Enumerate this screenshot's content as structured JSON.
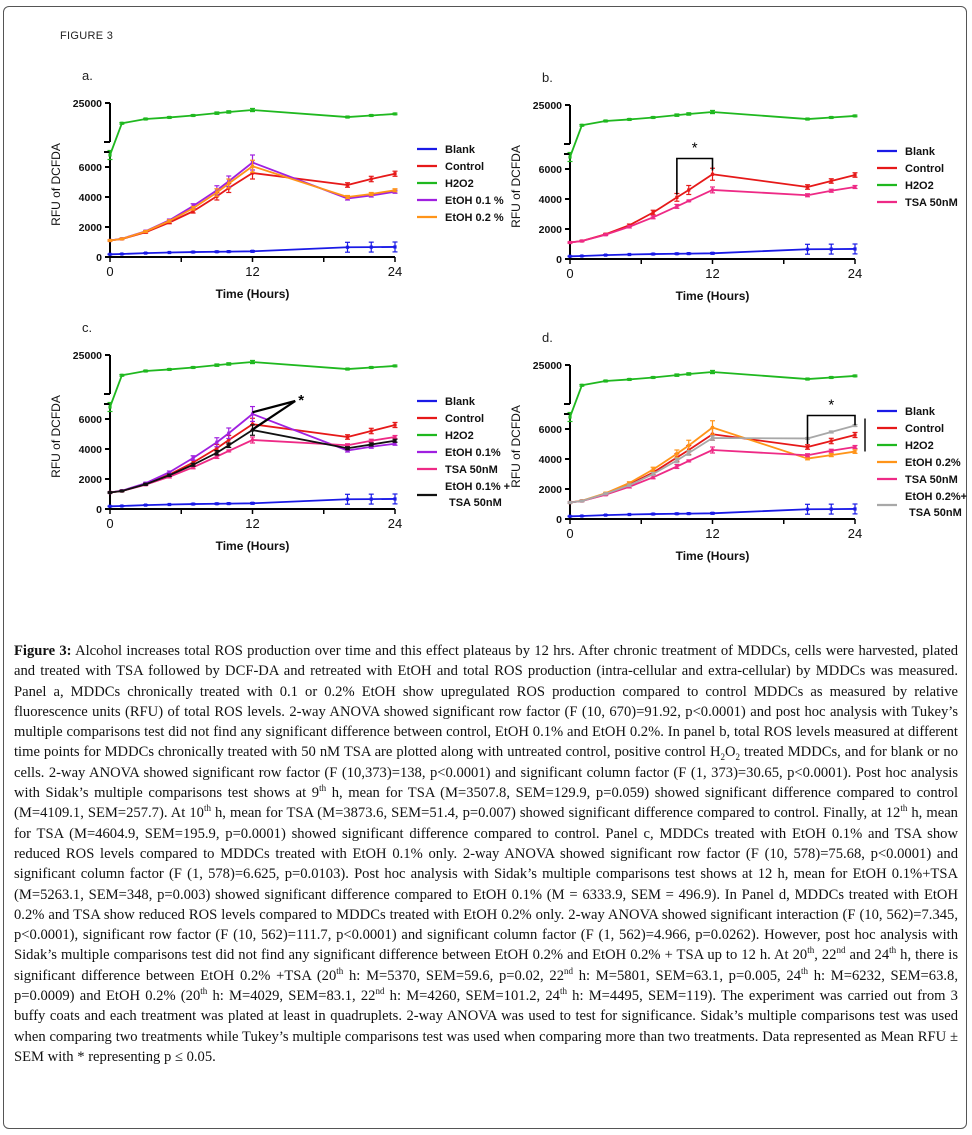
{
  "figure_label": "FIGURE 3",
  "colors": {
    "Blank": "#1a1ae6",
    "Control": "#e61919",
    "H2O2": "#1fb81f",
    "EtOH 0.1%": "#a020e0",
    "EtOH 0.2%": "#ff9419",
    "TSA 50nM": "#ee2a86",
    "EtOH 0.1% + TSA 50nM": "#111111",
    "EtOH 0.2% + TSA 50nM": "#a8a8a8"
  },
  "chart_data": [
    {
      "panel": "a.",
      "type": "line",
      "xlabel": "Time (Hours)",
      "ylabel": "RFU of DCFDA",
      "x_ticks": [
        "0",
        "12",
        "24"
      ],
      "y_ticks_lower": [
        "0",
        "2000",
        "4000",
        "6000"
      ],
      "y_ticks_upper": [
        "25000"
      ],
      "xlim": [
        0,
        24
      ],
      "ylim_lower": [
        0,
        7000
      ],
      "ylim_upper": [
        20000,
        25000
      ],
      "axis_break": true,
      "legend": "right",
      "x": [
        0,
        1,
        3,
        5,
        7,
        9,
        10,
        12,
        20,
        22,
        24
      ],
      "series": [
        {
          "name": "Blank",
          "legend_label": "Blank",
          "values": [
            180,
            200,
            260,
            300,
            330,
            350,
            360,
            380,
            650,
            660,
            670
          ],
          "sem": [
            20,
            20,
            30,
            30,
            40,
            40,
            40,
            50,
            330,
            330,
            330
          ]
        },
        {
          "name": "Control",
          "legend_label": "Control",
          "values": [
            1100,
            1200,
            1650,
            2300,
            3050,
            4050,
            4600,
            5600,
            4800,
            5200,
            5550
          ],
          "sem": [
            40,
            40,
            60,
            80,
            120,
            250,
            300,
            400,
            150,
            180,
            170
          ]
        },
        {
          "name": "H2O2",
          "legend_label": "H2O2",
          "values": [
            6800,
            22400,
            22950,
            23150,
            23400,
            23700,
            23850,
            24100,
            23200,
            23400,
            23600
          ],
          "sem": [
            300,
            100,
            100,
            100,
            100,
            150,
            150,
            200,
            100,
            100,
            100
          ]
        },
        {
          "name": "EtOH 0.1%",
          "legend_label": "EtOH 0.1 %",
          "values": [
            1100,
            1220,
            1720,
            2450,
            3400,
            4450,
            5050,
            6300,
            3900,
            4100,
            4350
          ],
          "sem": [
            40,
            40,
            60,
            80,
            150,
            300,
            350,
            500,
            100,
            100,
            100
          ]
        },
        {
          "name": "EtOH 0.2%",
          "legend_label": "EtOH 0.2 %",
          "values": [
            1100,
            1210,
            1700,
            2400,
            3250,
            4300,
            4900,
            6050,
            4000,
            4200,
            4450
          ],
          "sem": [
            40,
            40,
            60,
            80,
            120,
            250,
            300,
            400,
            100,
            100,
            100
          ]
        }
      ],
      "annotations": []
    },
    {
      "panel": "b.",
      "type": "line",
      "xlabel": "Time (Hours)",
      "ylabel": "RFU of DCFDA",
      "x_ticks": [
        "0",
        "12",
        "24"
      ],
      "y_ticks_lower": [
        "0",
        "2000",
        "4000",
        "6000"
      ],
      "y_ticks_upper": [
        "25000"
      ],
      "xlim": [
        0,
        24
      ],
      "ylim_lower": [
        0,
        7000
      ],
      "ylim_upper": [
        20000,
        25000
      ],
      "axis_break": true,
      "legend": "right",
      "x": [
        0,
        1,
        3,
        5,
        7,
        9,
        10,
        12,
        20,
        22,
        24
      ],
      "series": [
        {
          "name": "Blank",
          "legend_label": "Blank",
          "values": [
            180,
            200,
            260,
            300,
            330,
            350,
            360,
            380,
            650,
            660,
            670
          ],
          "sem": [
            20,
            20,
            30,
            30,
            40,
            40,
            40,
            50,
            330,
            330,
            330
          ]
        },
        {
          "name": "Control",
          "legend_label": "Control",
          "values": [
            1100,
            1200,
            1650,
            2250,
            3100,
            4109.1,
            4600,
            5650,
            4800,
            5200,
            5600
          ],
          "sem": [
            40,
            40,
            60,
            80,
            150,
            257.7,
            300,
            400,
            150,
            150,
            150
          ]
        },
        {
          "name": "H2O2",
          "legend_label": "H2O2",
          "values": [
            6800,
            22400,
            22950,
            23150,
            23400,
            23700,
            23850,
            24100,
            23200,
            23400,
            23600
          ],
          "sem": [
            300,
            100,
            100,
            100,
            100,
            150,
            150,
            200,
            100,
            100,
            100
          ]
        },
        {
          "name": "TSA 50nM",
          "legend_label": "TSA 50nM",
          "values": [
            1100,
            1200,
            1620,
            2150,
            2780,
            3507.8,
            3873.6,
            4604.9,
            4250,
            4550,
            4800
          ],
          "sem": [
            40,
            40,
            60,
            80,
            100,
            129.9,
            51.4,
            195.9,
            100,
            100,
            100
          ]
        }
      ],
      "annotations": [
        {
          "type": "bracket",
          "x_from": 9,
          "x_to": 12,
          "label": "*"
        }
      ]
    },
    {
      "panel": "c.",
      "type": "line",
      "xlabel": "Time (Hours)",
      "ylabel": "RFU of DCFDA",
      "x_ticks": [
        "0",
        "12",
        "24"
      ],
      "y_ticks_lower": [
        "0",
        "2000",
        "4000",
        "6000"
      ],
      "y_ticks_upper": [
        "25000"
      ],
      "xlim": [
        0,
        24
      ],
      "ylim_lower": [
        0,
        7000
      ],
      "ylim_upper": [
        20000,
        25000
      ],
      "axis_break": true,
      "legend": "right",
      "x": [
        0,
        1,
        3,
        5,
        7,
        9,
        10,
        12,
        20,
        22,
        24
      ],
      "series": [
        {
          "name": "Blank",
          "legend_label": "Blank",
          "values": [
            180,
            200,
            260,
            300,
            330,
            350,
            360,
            380,
            650,
            660,
            670
          ],
          "sem": [
            20,
            20,
            30,
            30,
            40,
            40,
            40,
            50,
            330,
            330,
            330
          ]
        },
        {
          "name": "Control",
          "legend_label": "Control",
          "values": [
            1100,
            1200,
            1650,
            2300,
            3100,
            4050,
            4600,
            5650,
            4800,
            5200,
            5600
          ],
          "sem": [
            40,
            40,
            60,
            80,
            150,
            250,
            300,
            400,
            150,
            180,
            170
          ]
        },
        {
          "name": "H2O2",
          "legend_label": "H2O2",
          "values": [
            6800,
            22400,
            22950,
            23150,
            23400,
            23700,
            23850,
            24100,
            23200,
            23400,
            23600
          ],
          "sem": [
            300,
            100,
            100,
            100,
            100,
            150,
            150,
            200,
            100,
            100,
            100
          ]
        },
        {
          "name": "EtOH 0.1%",
          "legend_label": "EtOH 0.1%",
          "values": [
            1100,
            1220,
            1720,
            2450,
            3400,
            4450,
            5050,
            6333.9,
            3900,
            4150,
            4350
          ],
          "sem": [
            40,
            40,
            60,
            80,
            150,
            300,
            350,
            496.9,
            100,
            100,
            100
          ]
        },
        {
          "name": "TSA 50nM",
          "legend_label": "TSA 50nM",
          "values": [
            1100,
            1200,
            1620,
            2150,
            2780,
            3500,
            3870,
            4600,
            4250,
            4550,
            4800
          ],
          "sem": [
            40,
            40,
            60,
            80,
            100,
            130,
            60,
            200,
            100,
            100,
            100
          ]
        },
        {
          "name": "EtOH 0.1% + TSA 50nM",
          "legend_label": "EtOH 0.1% +",
          "legend_label_2": "TSA 50nM",
          "values": [
            1100,
            1200,
            1650,
            2250,
            2950,
            3750,
            4250,
            5263.1,
            4050,
            4300,
            4550
          ],
          "sem": [
            40,
            40,
            60,
            80,
            100,
            150,
            150,
            348,
            100,
            100,
            100
          ]
        }
      ],
      "annotations": [
        {
          "type": "star-lines",
          "x": 12,
          "label": "*"
        }
      ]
    },
    {
      "panel": "d.",
      "type": "line",
      "xlabel": "Time (Hours)",
      "ylabel": "RFU of DCFDA",
      "x_ticks": [
        "0",
        "12",
        "24"
      ],
      "y_ticks_lower": [
        "0",
        "2000",
        "4000",
        "6000"
      ],
      "y_ticks_upper": [
        "25000"
      ],
      "xlim": [
        0,
        24
      ],
      "ylim_lower": [
        0,
        7000
      ],
      "ylim_upper": [
        20000,
        25000
      ],
      "axis_break": true,
      "legend": "right",
      "x": [
        0,
        1,
        3,
        5,
        7,
        9,
        10,
        12,
        20,
        22,
        24
      ],
      "series": [
        {
          "name": "Blank",
          "legend_label": "Blank",
          "values": [
            180,
            200,
            260,
            300,
            330,
            350,
            360,
            380,
            650,
            660,
            670
          ],
          "sem": [
            20,
            20,
            30,
            30,
            40,
            40,
            40,
            50,
            330,
            330,
            330
          ]
        },
        {
          "name": "Control",
          "legend_label": "Control",
          "values": [
            1100,
            1200,
            1650,
            2300,
            3100,
            4100,
            4600,
            5650,
            4800,
            5200,
            5600
          ],
          "sem": [
            40,
            40,
            60,
            80,
            150,
            250,
            300,
            400,
            150,
            180,
            170
          ]
        },
        {
          "name": "H2O2",
          "legend_label": "H2O2",
          "values": [
            6800,
            22400,
            22950,
            23150,
            23400,
            23700,
            23850,
            24100,
            23200,
            23400,
            23600
          ],
          "sem": [
            300,
            100,
            100,
            100,
            100,
            150,
            150,
            200,
            100,
            100,
            100
          ]
        },
        {
          "name": "EtOH 0.2%",
          "legend_label": "EtOH 0.2%",
          "values": [
            1100,
            1220,
            1720,
            2400,
            3300,
            4350,
            4900,
            6100,
            4029,
            4260,
            4495
          ],
          "sem": [
            40,
            40,
            60,
            80,
            150,
            250,
            350,
            450,
            83.1,
            101.2,
            119
          ]
        },
        {
          "name": "TSA 50nM",
          "legend_label": "TSA 50nM",
          "values": [
            1100,
            1200,
            1620,
            2150,
            2780,
            3500,
            3870,
            4600,
            4250,
            4550,
            4800
          ],
          "sem": [
            40,
            40,
            60,
            80,
            100,
            130,
            60,
            200,
            100,
            100,
            100
          ]
        },
        {
          "name": "EtOH 0.2% + TSA 50nM",
          "legend_label": "EtOH 0.2%+",
          "legend_label_2": "TSA 50nM",
          "values": [
            1100,
            1200,
            1680,
            2250,
            3000,
            3900,
            4400,
            5400,
            5370,
            5801,
            6232
          ],
          "sem": [
            40,
            40,
            60,
            80,
            100,
            150,
            150,
            150,
            59.6,
            63.1,
            63.8
          ]
        }
      ],
      "annotations": [
        {
          "type": "bracket",
          "x_from": 20,
          "x_to": 24,
          "label": "*"
        }
      ]
    }
  ],
  "caption": {
    "label": "Figure 3:",
    "segments": [
      {
        "t": " Alcohol increases total ROS production over time and this effect plateaus by 12 hrs. After chronic treatment of MDDCs, cells were harvested, plated and treated with TSA followed by DCF-DA and retreated with EtOH and total ROS production (intra-cellular and extra-cellular) by MDDCs was measured. Panel a, MDDCs chronically treated with 0.1 or 0.2% EtOH show upregulated ROS production compared to control MDDCs as measured by relative fluorescence units (RFU) of total ROS levels. 2-way ANOVA showed significant row factor (F (10, 670)=91.92, p<0.0001) and post hoc analysis with Tukey’s multiple comparisons test did not find any significant difference between control, EtOH 0.1% and EtOH 0.2%. In panel b, total ROS levels measured at different time points for MDDCs chronically treated with 50 nM TSA are plotted along with untreated control, positive control H"
      },
      {
        "t": "2",
        "sub": true
      },
      {
        "t": "O"
      },
      {
        "t": "2",
        "sub": true
      },
      {
        "t": " treated MDDCs, and for blank or no cells. 2-way ANOVA showed significant row factor (F (10,373)=138, p<0.0001) and significant column factor (F (1, 373)=30.65, p<0.0001). Post hoc analysis with Sidak’s multiple comparisons test shows at 9"
      },
      {
        "t": "th",
        "sup": true
      },
      {
        "t": " h, mean for TSA (M=3507.8, SEM=129.9, p=0.059) showed significant difference compared to control (M=4109.1, SEM=257.7). At 10"
      },
      {
        "t": "th",
        "sup": true
      },
      {
        "t": " h, mean for TSA (M=3873.6, SEM=51.4, p=0.007) showed significant difference compared to control. Finally, at 12"
      },
      {
        "t": "th",
        "sup": true
      },
      {
        "t": " h, mean for TSA (M=4604.9, SEM=195.9, p=0.0001) showed significant difference compared to control. Panel c, MDDCs treated with EtOH 0.1% and TSA show reduced ROS levels compared to MDDCs treated with EtOH 0.1% only. 2-way ANOVA showed significant row factor (F (10, 578)=75.68, p<0.0001) and significant column factor (F (1, 578)=6.625, p=0.0103). Post hoc analysis with Sidak’s multiple comparisons test shows at 12 h, mean for EtOH 0.1%+TSA (M=5263.1, SEM=348, p=0.003) showed significant difference compared to EtOH 0.1% (M = 6333.9, SEM = 496.9). In Panel d, MDDCs treated with EtOH 0.2% and TSA show reduced ROS levels compared to MDDCs treated with EtOH 0.2% only. 2-way ANOVA showed significant interaction (F (10, 562)=7.345, p<0.0001), significant row factor (F (10, 562)=111.7, p<0.0001) and significant column factor (F (1, 562)=4.966, p=0.0262). However, post hoc analysis with Sidak’s multiple comparisons test did not find any significant difference between EtOH 0.2% and EtOH 0.2% + TSA up to 12 h. At 20"
      },
      {
        "t": "th",
        "sup": true
      },
      {
        "t": ", 22"
      },
      {
        "t": "nd",
        "sup": true
      },
      {
        "t": " and 24"
      },
      {
        "t": "th",
        "sup": true
      },
      {
        "t": " h, there is significant difference between EtOH 0.2% +TSA (20"
      },
      {
        "t": "th",
        "sup": true
      },
      {
        "t": " h: M=5370, SEM=59.6, p=0.02, 22"
      },
      {
        "t": "nd",
        "sup": true
      },
      {
        "t": " h: M=5801, SEM=63.1, p=0.005, 24"
      },
      {
        "t": "th",
        "sup": true
      },
      {
        "t": " h: M=6232, SEM=63.8, p=0.0009) and EtOH 0.2% (20"
      },
      {
        "t": "th",
        "sup": true
      },
      {
        "t": " h: M=4029, SEM=83.1, 22"
      },
      {
        "t": "nd",
        "sup": true
      },
      {
        "t": " h: M=4260, SEM=101.2, 24"
      },
      {
        "t": "th",
        "sup": true
      },
      {
        "t": " h: M=4495, SEM=119). The experiment was carried out from 3 buffy coats and each treatment was plated at least in quadruplets. 2-way ANOVA was used to test for significance. Sidak’s multiple comparisons test was used when comparing two treatments while Tukey’s multiple comparisons test was used when comparing more than two treatments. Data represented as Mean RFU ± SEM with * representing p ≤ 0.05."
      }
    ]
  }
}
